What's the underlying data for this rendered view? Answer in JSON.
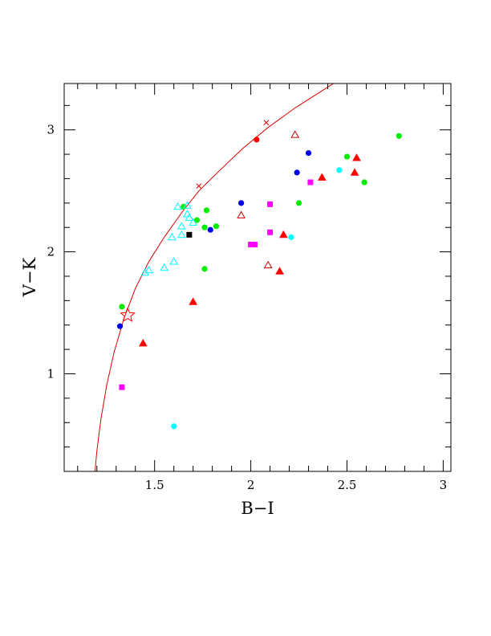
{
  "chart_data": {
    "type": "scatter",
    "xlabel": "B−I",
    "ylabel": "V−K",
    "xlim": [
      1.03,
      3.04
    ],
    "ylim": [
      0.2,
      3.38
    ],
    "xticks": [
      {
        "value": 1.5,
        "label": "1.5"
      },
      {
        "value": 2.0,
        "label": "2"
      },
      {
        "value": 2.5,
        "label": "2.5"
      },
      {
        "value": 3.0,
        "label": "3"
      }
    ],
    "yticks": [
      {
        "value": 1,
        "label": "1"
      },
      {
        "value": 2,
        "label": "2"
      },
      {
        "value": 3,
        "label": "3"
      }
    ],
    "grid": false,
    "colors": {
      "red": "#ff0000",
      "darkred": "#cc0000",
      "green": "#00ee00",
      "blue": "#0000ee",
      "cyan": "#00ffff",
      "magenta": "#ff00ff",
      "black": "#000000",
      "curve": "#dd0000"
    },
    "curve": {
      "color": "#dd0000",
      "points": [
        [
          1.19,
          0.2
        ],
        [
          1.2,
          0.37
        ],
        [
          1.22,
          0.62
        ],
        [
          1.25,
          0.9
        ],
        [
          1.29,
          1.18
        ],
        [
          1.34,
          1.45
        ],
        [
          1.4,
          1.7
        ],
        [
          1.47,
          1.92
        ],
        [
          1.55,
          2.12
        ],
        [
          1.64,
          2.32
        ],
        [
          1.73,
          2.5
        ],
        [
          1.84,
          2.67
        ],
        [
          1.96,
          2.85
        ],
        [
          2.09,
          3.02
        ],
        [
          2.23,
          3.18
        ],
        [
          2.38,
          3.33
        ],
        [
          2.43,
          3.38
        ]
      ]
    },
    "curve_markers": [
      [
        1.73,
        2.54
      ],
      [
        2.08,
        3.06
      ]
    ],
    "star": [
      1.36,
      1.48
    ],
    "series": [
      {
        "marker": "circle",
        "color": "#ff0000",
        "points": [
          [
            2.03,
            2.92
          ]
        ]
      },
      {
        "marker": "circle",
        "color": "#00ee00",
        "points": [
          [
            1.33,
            1.55
          ],
          [
            1.65,
            2.37
          ],
          [
            1.72,
            2.26
          ],
          [
            1.76,
            2.2
          ],
          [
            1.77,
            2.34
          ],
          [
            1.76,
            1.86
          ],
          [
            1.82,
            2.21
          ],
          [
            2.25,
            2.4
          ],
          [
            2.5,
            2.78
          ],
          [
            2.59,
            2.57
          ],
          [
            2.77,
            2.95
          ]
        ]
      },
      {
        "marker": "circle",
        "color": "#0000ee",
        "points": [
          [
            1.32,
            1.39
          ],
          [
            1.79,
            2.18
          ],
          [
            1.95,
            2.4
          ],
          [
            2.24,
            2.65
          ],
          [
            2.3,
            2.81
          ]
        ]
      },
      {
        "marker": "circle",
        "color": "#00ffff",
        "points": [
          [
            1.6,
            0.57
          ],
          [
            2.21,
            2.12
          ],
          [
            2.46,
            2.67
          ]
        ]
      },
      {
        "marker": "square",
        "color": "#ff00ff",
        "points": [
          [
            1.33,
            0.89
          ],
          [
            2.0,
            2.06
          ],
          [
            2.02,
            2.06
          ],
          [
            2.1,
            2.39
          ],
          [
            2.1,
            2.16
          ],
          [
            2.31,
            2.57
          ]
        ]
      },
      {
        "marker": "square",
        "color": "#000000",
        "points": [
          [
            1.68,
            2.14
          ]
        ]
      },
      {
        "marker": "triangle-filled",
        "color": "#ff0000",
        "points": [
          [
            1.44,
            1.25
          ],
          [
            1.7,
            1.59
          ],
          [
            2.15,
            1.84
          ],
          [
            2.17,
            2.14
          ],
          [
            2.37,
            2.61
          ],
          [
            2.54,
            2.65
          ],
          [
            2.55,
            2.77
          ]
        ]
      },
      {
        "marker": "triangle-open",
        "color": "#cc0000",
        "points": [
          [
            1.95,
            2.3
          ],
          [
            2.09,
            1.89
          ],
          [
            2.23,
            2.96
          ]
        ]
      },
      {
        "marker": "triangle-open",
        "color": "#00ffff",
        "points": [
          [
            1.45,
            1.83
          ],
          [
            1.47,
            1.85
          ],
          [
            1.55,
            1.87
          ],
          [
            1.59,
            2.12
          ],
          [
            1.6,
            1.92
          ],
          [
            1.62,
            2.37
          ],
          [
            1.64,
            2.14
          ],
          [
            1.64,
            2.21
          ],
          [
            1.67,
            2.38
          ],
          [
            1.67,
            2.31
          ],
          [
            1.68,
            2.28
          ],
          [
            1.7,
            2.24
          ]
        ]
      }
    ]
  }
}
